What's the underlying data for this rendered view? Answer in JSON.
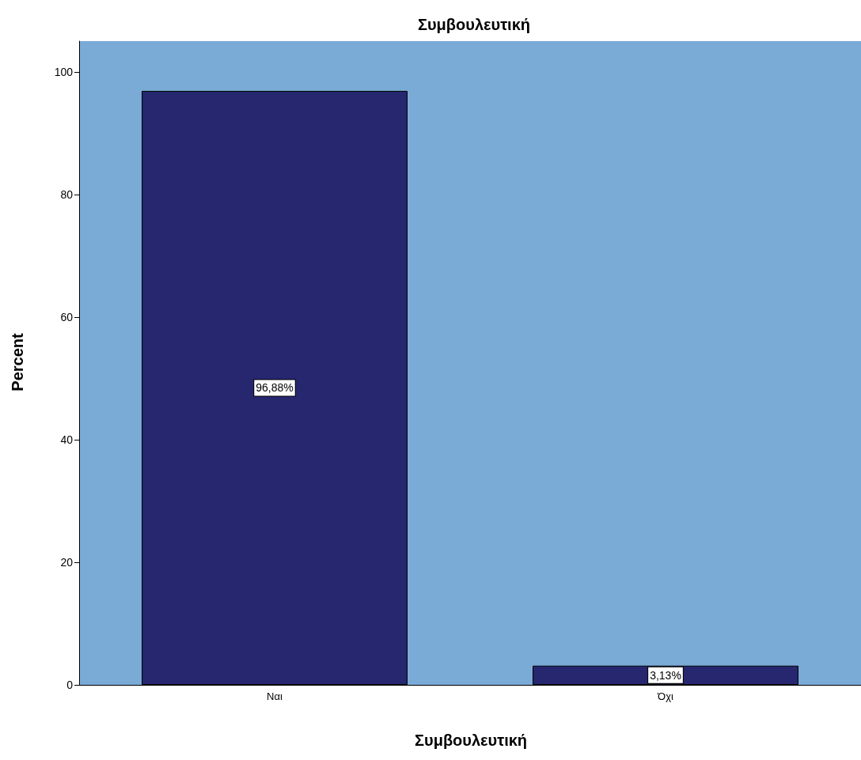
{
  "chart_data": {
    "type": "bar",
    "title": "Συμβουλευτική",
    "xlabel": "Συμβουλευτική",
    "ylabel": "Percent",
    "categories": [
      "Ναι",
      "Όχι"
    ],
    "values": [
      96.88,
      3.13
    ],
    "value_labels": [
      "96,88%",
      "3,13%"
    ],
    "color": "#26276f",
    "ylim": [
      0,
      105
    ],
    "yticks": [
      0,
      20,
      40,
      60,
      80,
      100
    ],
    "grid": false
  }
}
